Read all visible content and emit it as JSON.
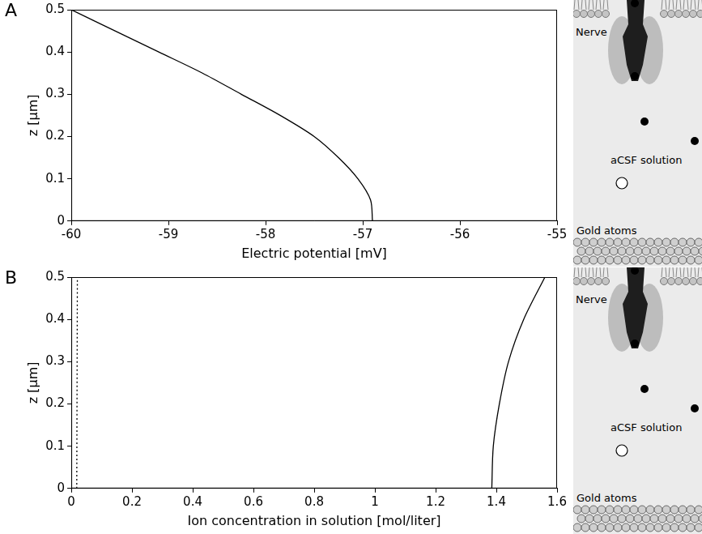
{
  "chart_data": [
    {
      "panel_label": "A",
      "type": "line",
      "x_label": "Electric potential [mV]",
      "y_label": "z [μm]",
      "xlim": [
        -60,
        -55
      ],
      "xticks": [
        -60,
        -59,
        -58,
        -57,
        -56,
        -55
      ],
      "ylim": [
        0,
        0.5
      ],
      "yticks": [
        0,
        0.1,
        0.2,
        0.3,
        0.4,
        0.5
      ],
      "grid": false,
      "series": [
        {
          "color": "#000000",
          "line_style": "solid",
          "marker": "none",
          "x": [
            -56.9,
            -56.92,
            -57.05,
            -57.25,
            -57.5,
            -57.85,
            -58.25,
            -58.65,
            -59.1,
            -59.55,
            -60
          ],
          "values": [
            0,
            0.05,
            0.1,
            0.15,
            0.2,
            0.25,
            0.3,
            0.35,
            0.4,
            0.45,
            0.5
          ]
        }
      ],
      "illustration": {
        "labels": [
          "Nerve",
          "aCSF solution",
          "Gold atoms"
        ]
      }
    },
    {
      "panel_label": "B",
      "type": "line",
      "x_label": "Ion concentration in solution [mol/liter]",
      "y_label": "z [μm]",
      "xlim": [
        0,
        1.6
      ],
      "xticks": [
        0,
        0.2,
        0.4,
        0.6,
        0.8,
        1,
        1.2,
        1.4,
        1.6
      ],
      "ylim": [
        0,
        0.5
      ],
      "yticks": [
        0,
        0.1,
        0.2,
        0.3,
        0.4,
        0.5
      ],
      "grid": false,
      "series": [
        {
          "color": "#000000",
          "line_style": "solid",
          "marker": "none",
          "x": [
            1.385,
            1.39,
            1.41,
            1.44,
            1.49,
            1.56
          ],
          "values": [
            0,
            0.1,
            0.2,
            0.3,
            0.4,
            0.5
          ]
        },
        {
          "color": "#000000",
          "line_style": "dotted",
          "marker": "none",
          "x": [
            0.018,
            0.02
          ],
          "values": [
            0,
            0.5
          ]
        }
      ],
      "illustration": {
        "labels": [
          "Nerve",
          "aCSF solution",
          "Gold atoms"
        ]
      }
    }
  ]
}
